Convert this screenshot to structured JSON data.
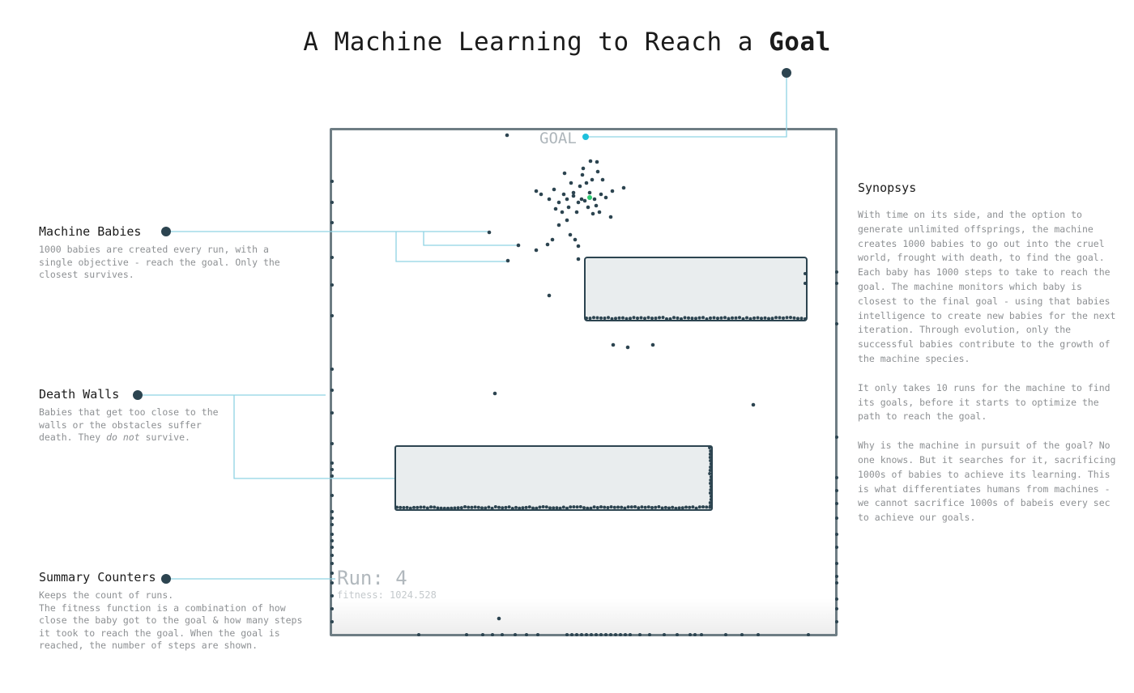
{
  "title": {
    "prefix": "A Machine Learning to Reach a ",
    "bold": "Goal"
  },
  "annotations": {
    "babies": {
      "heading": "Machine Babies",
      "body": "1000 babies are created every run, with a\nsingle objective - reach the goal. Only the\nclosest survives."
    },
    "walls": {
      "heading": "Death Walls",
      "body_before": "Babies that get too close to the\nwalls or the obstacles suffer\ndeath. They ",
      "body_em": "do not",
      "body_after": " survive."
    },
    "counters": {
      "heading": "Summary Counters",
      "body": "Keeps the count of runs.\nThe fitness function is a combination of how\nclose the baby got to the goal & how many steps\nit took to reach the goal. When the goal is\nreached, the number of steps are shown."
    }
  },
  "synopsis": {
    "heading": "Synopsys",
    "paragraphs": [
      "With time on its side, and the option to generate unlimited offsprings, the machine creates 1000 babies to go out into the cruel world, frought with death, to find the goal. Each baby has 1000 steps to take to reach the goal. The machine monitors which baby is closest to the final goal - using that babies intelligence to create new babies for the next iteration. Through evolution, only the successful babies contribute to the growth of the machine species.",
      "It only takes 10 runs for the machine to find its goals, before it starts to optimize the path to reach the goal.",
      "Why is the machine in pursuit of the goal? No one knows. But it searches for it, sacrificing 1000s of babies to achieve its learning. This is what differentiates humans from machines - we cannot sacrifice 1000s of babeis every sec to achieve our goals."
    ]
  },
  "simulation": {
    "goal_label": "GOAL",
    "run_label": "Run: 4",
    "fitness_label": "fitness: 1024.528"
  },
  "colors": {
    "dot": "#2c4450",
    "connector": "#8fd3e3",
    "goal": "#1ec0dc",
    "best_baby": "#2ecc71",
    "obstacle_fill": "#e9edee",
    "obstacle_stroke": "#2c4450"
  }
}
